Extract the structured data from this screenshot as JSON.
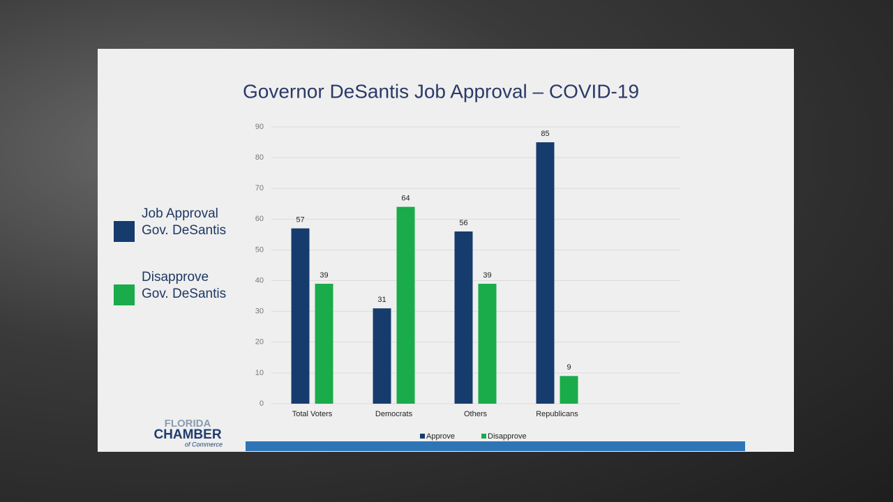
{
  "chart_data": {
    "type": "bar",
    "title": "Governor DeSantis Job Approval – COVID-19",
    "categories": [
      "Total Voters",
      "Democrats",
      "Others",
      "Republicans"
    ],
    "series": [
      {
        "name": "Approve",
        "color": "#163c6e",
        "values": [
          57,
          31,
          56,
          85
        ]
      },
      {
        "name": "Disapprove",
        "color": "#1aab4b",
        "values": [
          39,
          64,
          39,
          9
        ]
      }
    ],
    "ylim": [
      0,
      90
    ],
    "yticks": [
      0,
      10,
      20,
      30,
      40,
      50,
      60,
      70,
      80,
      90
    ],
    "grid": true,
    "legend": "bottom",
    "side_legend": [
      [
        "Job Approval",
        "Gov. DeSantis"
      ],
      [
        "Disapprove",
        "Gov. DeSantis"
      ]
    ]
  },
  "logo": {
    "line1": "FLORIDA",
    "line2": "CHAMBER",
    "line3": "of Commerce"
  }
}
